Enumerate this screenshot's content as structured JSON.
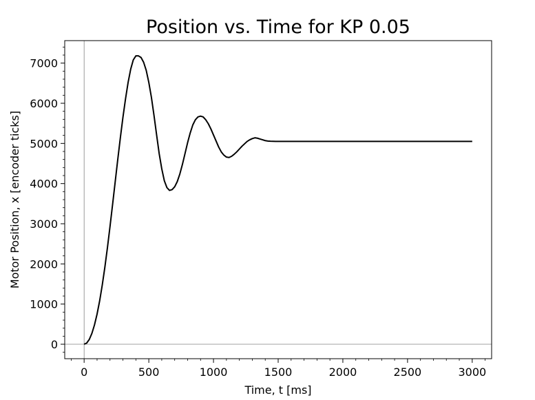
{
  "chart_data": {
    "type": "line",
    "title": "Position vs. Time for KP 0.05",
    "xlabel": "Time, t [ms]",
    "ylabel": "Motor Position, x [encoder ticks]",
    "xlim": [
      -150,
      3150
    ],
    "ylim": [
      -360,
      7560
    ],
    "xticks": [
      0,
      500,
      1000,
      1500,
      2000,
      2500,
      3000
    ],
    "yticks": [
      0,
      1000,
      2000,
      3000,
      4000,
      5000,
      6000,
      7000
    ],
    "grid": false,
    "legend": "none",
    "reference_lines": {
      "x": 0,
      "y": 0
    },
    "colors": {
      "line": "#000000",
      "reference": "#808080"
    },
    "series": [
      {
        "x": [
          0,
          20,
          40,
          60,
          80,
          100,
          120,
          140,
          160,
          180,
          200,
          220,
          240,
          260,
          280,
          300,
          320,
          340,
          360,
          380,
          400,
          420,
          440,
          460,
          480,
          500,
          520,
          540,
          560,
          580,
          600,
          620,
          640,
          660,
          680,
          700,
          720,
          740,
          760,
          780,
          800,
          820,
          840,
          860,
          880,
          900,
          920,
          940,
          960,
          980,
          1000,
          1020,
          1040,
          1060,
          1080,
          1100,
          1120,
          1140,
          1160,
          1180,
          1200,
          1220,
          1240,
          1260,
          1280,
          1300,
          1320,
          1340,
          1360,
          1380,
          1400,
          1420,
          1440,
          1460,
          1480,
          1500,
          1520,
          1540,
          1560,
          1580,
          1600,
          1620,
          1640,
          1660,
          1700,
          1800,
          2000,
          2500,
          3000
        ],
        "y": [
          0,
          30,
          120,
          270,
          480,
          750,
          1080,
          1470,
          1910,
          2400,
          2930,
          3480,
          4040,
          4600,
          5140,
          5650,
          6110,
          6520,
          6850,
          7080,
          7180,
          7180,
          7140,
          7020,
          6820,
          6520,
          6150,
          5700,
          5220,
          4750,
          4370,
          4070,
          3900,
          3830,
          3850,
          3920,
          4050,
          4240,
          4480,
          4750,
          5020,
          5260,
          5460,
          5590,
          5660,
          5680,
          5660,
          5590,
          5490,
          5360,
          5210,
          5060,
          4910,
          4790,
          4710,
          4660,
          4650,
          4680,
          4730,
          4790,
          4860,
          4930,
          4990,
          5050,
          5090,
          5120,
          5140,
          5130,
          5110,
          5090,
          5070,
          5060,
          5055,
          5052,
          5050,
          5050,
          5050,
          5050,
          5050,
          5050,
          5050,
          5050,
          5050,
          5050,
          5050,
          5050,
          5050,
          5050,
          5050
        ]
      }
    ]
  }
}
